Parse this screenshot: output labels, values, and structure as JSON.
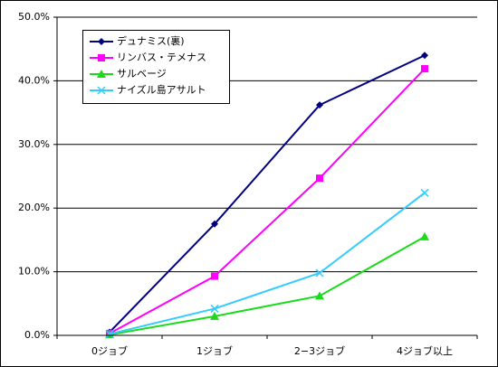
{
  "chart_data": {
    "type": "line",
    "categories": [
      "0ジョブ",
      "1ジョブ",
      "2−3ジョブ",
      "4ジョブ以上"
    ],
    "series": [
      {
        "name": "デュナミス(裏)",
        "color": "#000080",
        "marker": "diamond",
        "values": [
          0.5,
          17.5,
          36.2,
          44.0
        ]
      },
      {
        "name": "リンバス・テメナス",
        "color": "#ff00ff",
        "marker": "square",
        "values": [
          0.3,
          9.3,
          24.7,
          41.9
        ]
      },
      {
        "name": "サルベージ",
        "color": "#1adb1a",
        "marker": "triangle",
        "values": [
          0.1,
          3.0,
          6.2,
          15.5
        ]
      },
      {
        "name": "ナイズル島アサルト",
        "color": "#33ccff",
        "marker": "x",
        "values": [
          0.2,
          4.2,
          9.8,
          22.4
        ]
      }
    ],
    "ylim": [
      0,
      50
    ],
    "yticks": [
      {
        "value": 0,
        "label": "0.0%"
      },
      {
        "value": 10,
        "label": "10.0%"
      },
      {
        "value": 20,
        "label": "20.0%"
      },
      {
        "value": 30,
        "label": "30.0%"
      },
      {
        "value": 40,
        "label": "40.0%"
      },
      {
        "value": 50,
        "label": "50.0%"
      }
    ],
    "grid": true,
    "legend": "upper-left"
  }
}
